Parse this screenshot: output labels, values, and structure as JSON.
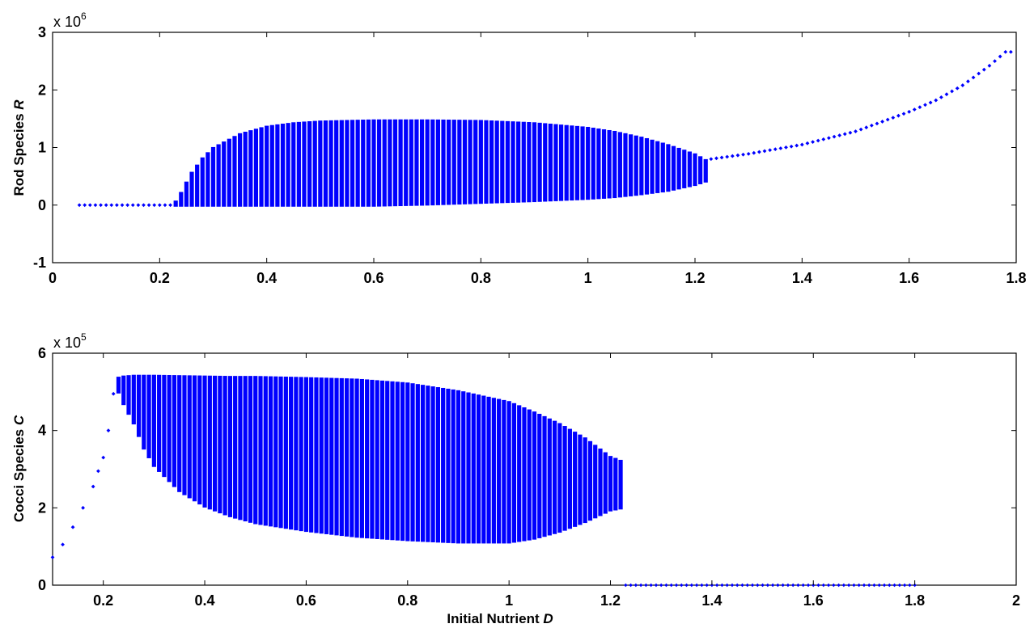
{
  "chart_data": [
    {
      "type": "scatter",
      "title": "",
      "xlabel": "",
      "ylabel": "Rod Species R",
      "ylabel_parts": [
        "Rod Species ",
        "R"
      ],
      "xlim": [
        0,
        1.8
      ],
      "ylim": [
        -1,
        3
      ],
      "x_ticks": [
        0,
        0.2,
        0.4,
        0.6,
        0.8,
        1,
        1.2,
        1.4,
        1.6,
        1.8
      ],
      "y_ticks": [
        -1,
        0,
        1,
        2,
        3
      ],
      "y_exponent_prefix": "x 10",
      "y_exponent_power": "6",
      "marker_color": "#0000ff",
      "grid": false,
      "series": [
        {
          "values_description_free": true,
          "low_branch": {
            "x_start": 0.05,
            "x_end": 0.22,
            "step": 0.01,
            "y": 0
          },
          "band": {
            "x_start": 0.23,
            "x_end": 1.22,
            "step": 0.01,
            "envelope_x": [
              0.23,
              0.24,
              0.25,
              0.26,
              0.28,
              0.3,
              0.35,
              0.4,
              0.45,
              0.5,
              0.6,
              0.7,
              0.8,
              0.9,
              1.0,
              1.05,
              1.1,
              1.15,
              1.2,
              1.22
            ],
            "envelope_upper": [
              0.05,
              0.2,
              0.38,
              0.55,
              0.8,
              0.98,
              1.22,
              1.35,
              1.41,
              1.44,
              1.46,
              1.46,
              1.45,
              1.41,
              1.33,
              1.26,
              1.16,
              1.03,
              0.87,
              0.77
            ],
            "envelope_lower": [
              0.0,
              0.0,
              0.0,
              0.0,
              0.0,
              0.0,
              0.0,
              0.0,
              0.0,
              0.0,
              0.0,
              0.02,
              0.05,
              0.08,
              0.12,
              0.15,
              0.2,
              0.26,
              0.36,
              0.42
            ]
          },
          "upper_branch": {
            "x": [
              1.23,
              1.3,
              1.4,
              1.5,
              1.6,
              1.65,
              1.7,
              1.75,
              1.78,
              1.8
            ],
            "y": [
              0.8,
              0.89,
              1.05,
              1.28,
              1.62,
              1.82,
              2.08,
              2.42,
              2.66,
              2.66
            ]
          }
        }
      ]
    },
    {
      "type": "scatter",
      "title": "",
      "xlabel": "Initial Nutrient D",
      "xlabel_parts": [
        "Initial Nutrient ",
        "D"
      ],
      "ylabel": "Cocci Species C",
      "ylabel_parts": [
        "Cocci Species ",
        "C"
      ],
      "xlim": [
        0.1,
        2
      ],
      "ylim": [
        0,
        6
      ],
      "x_ticks": [
        0.2,
        0.4,
        0.6,
        0.8,
        1,
        1.2,
        1.4,
        1.6,
        1.8,
        2
      ],
      "y_ticks": [
        0,
        2,
        4,
        6
      ],
      "y_exponent_prefix": "x 10",
      "y_exponent_power": "5",
      "marker_color": "#0000ff",
      "grid": false,
      "series": [
        {
          "rising_branch": {
            "x": [
              0.1,
              0.12,
              0.14,
              0.16,
              0.18,
              0.19,
              0.2,
              0.21,
              0.22
            ],
            "y": [
              0.72,
              1.05,
              1.5,
              2.0,
              2.55,
              2.95,
              3.3,
              4.0,
              4.95
            ]
          },
          "band": {
            "x_start": 0.23,
            "x_end": 1.22,
            "step": 0.01,
            "envelope_x": [
              0.23,
              0.24,
              0.26,
              0.28,
              0.3,
              0.35,
              0.4,
              0.45,
              0.5,
              0.6,
              0.7,
              0.8,
              0.9,
              1.0,
              1.05,
              1.1,
              1.15,
              1.2,
              1.22
            ],
            "envelope_upper": [
              5.35,
              5.38,
              5.4,
              5.4,
              5.4,
              5.39,
              5.38,
              5.37,
              5.37,
              5.34,
              5.3,
              5.2,
              5.0,
              4.72,
              4.45,
              4.15,
              3.78,
              3.3,
              3.2
            ],
            "envelope_lower": [
              5.0,
              4.7,
              4.2,
              3.55,
              3.1,
              2.45,
              2.05,
              1.8,
              1.62,
              1.42,
              1.27,
              1.18,
              1.12,
              1.12,
              1.22,
              1.4,
              1.65,
              1.95,
              2.0
            ]
          },
          "zero_branch": {
            "x_start": 1.23,
            "x_end": 1.8,
            "step": 0.01,
            "y": 0
          }
        }
      ]
    }
  ]
}
